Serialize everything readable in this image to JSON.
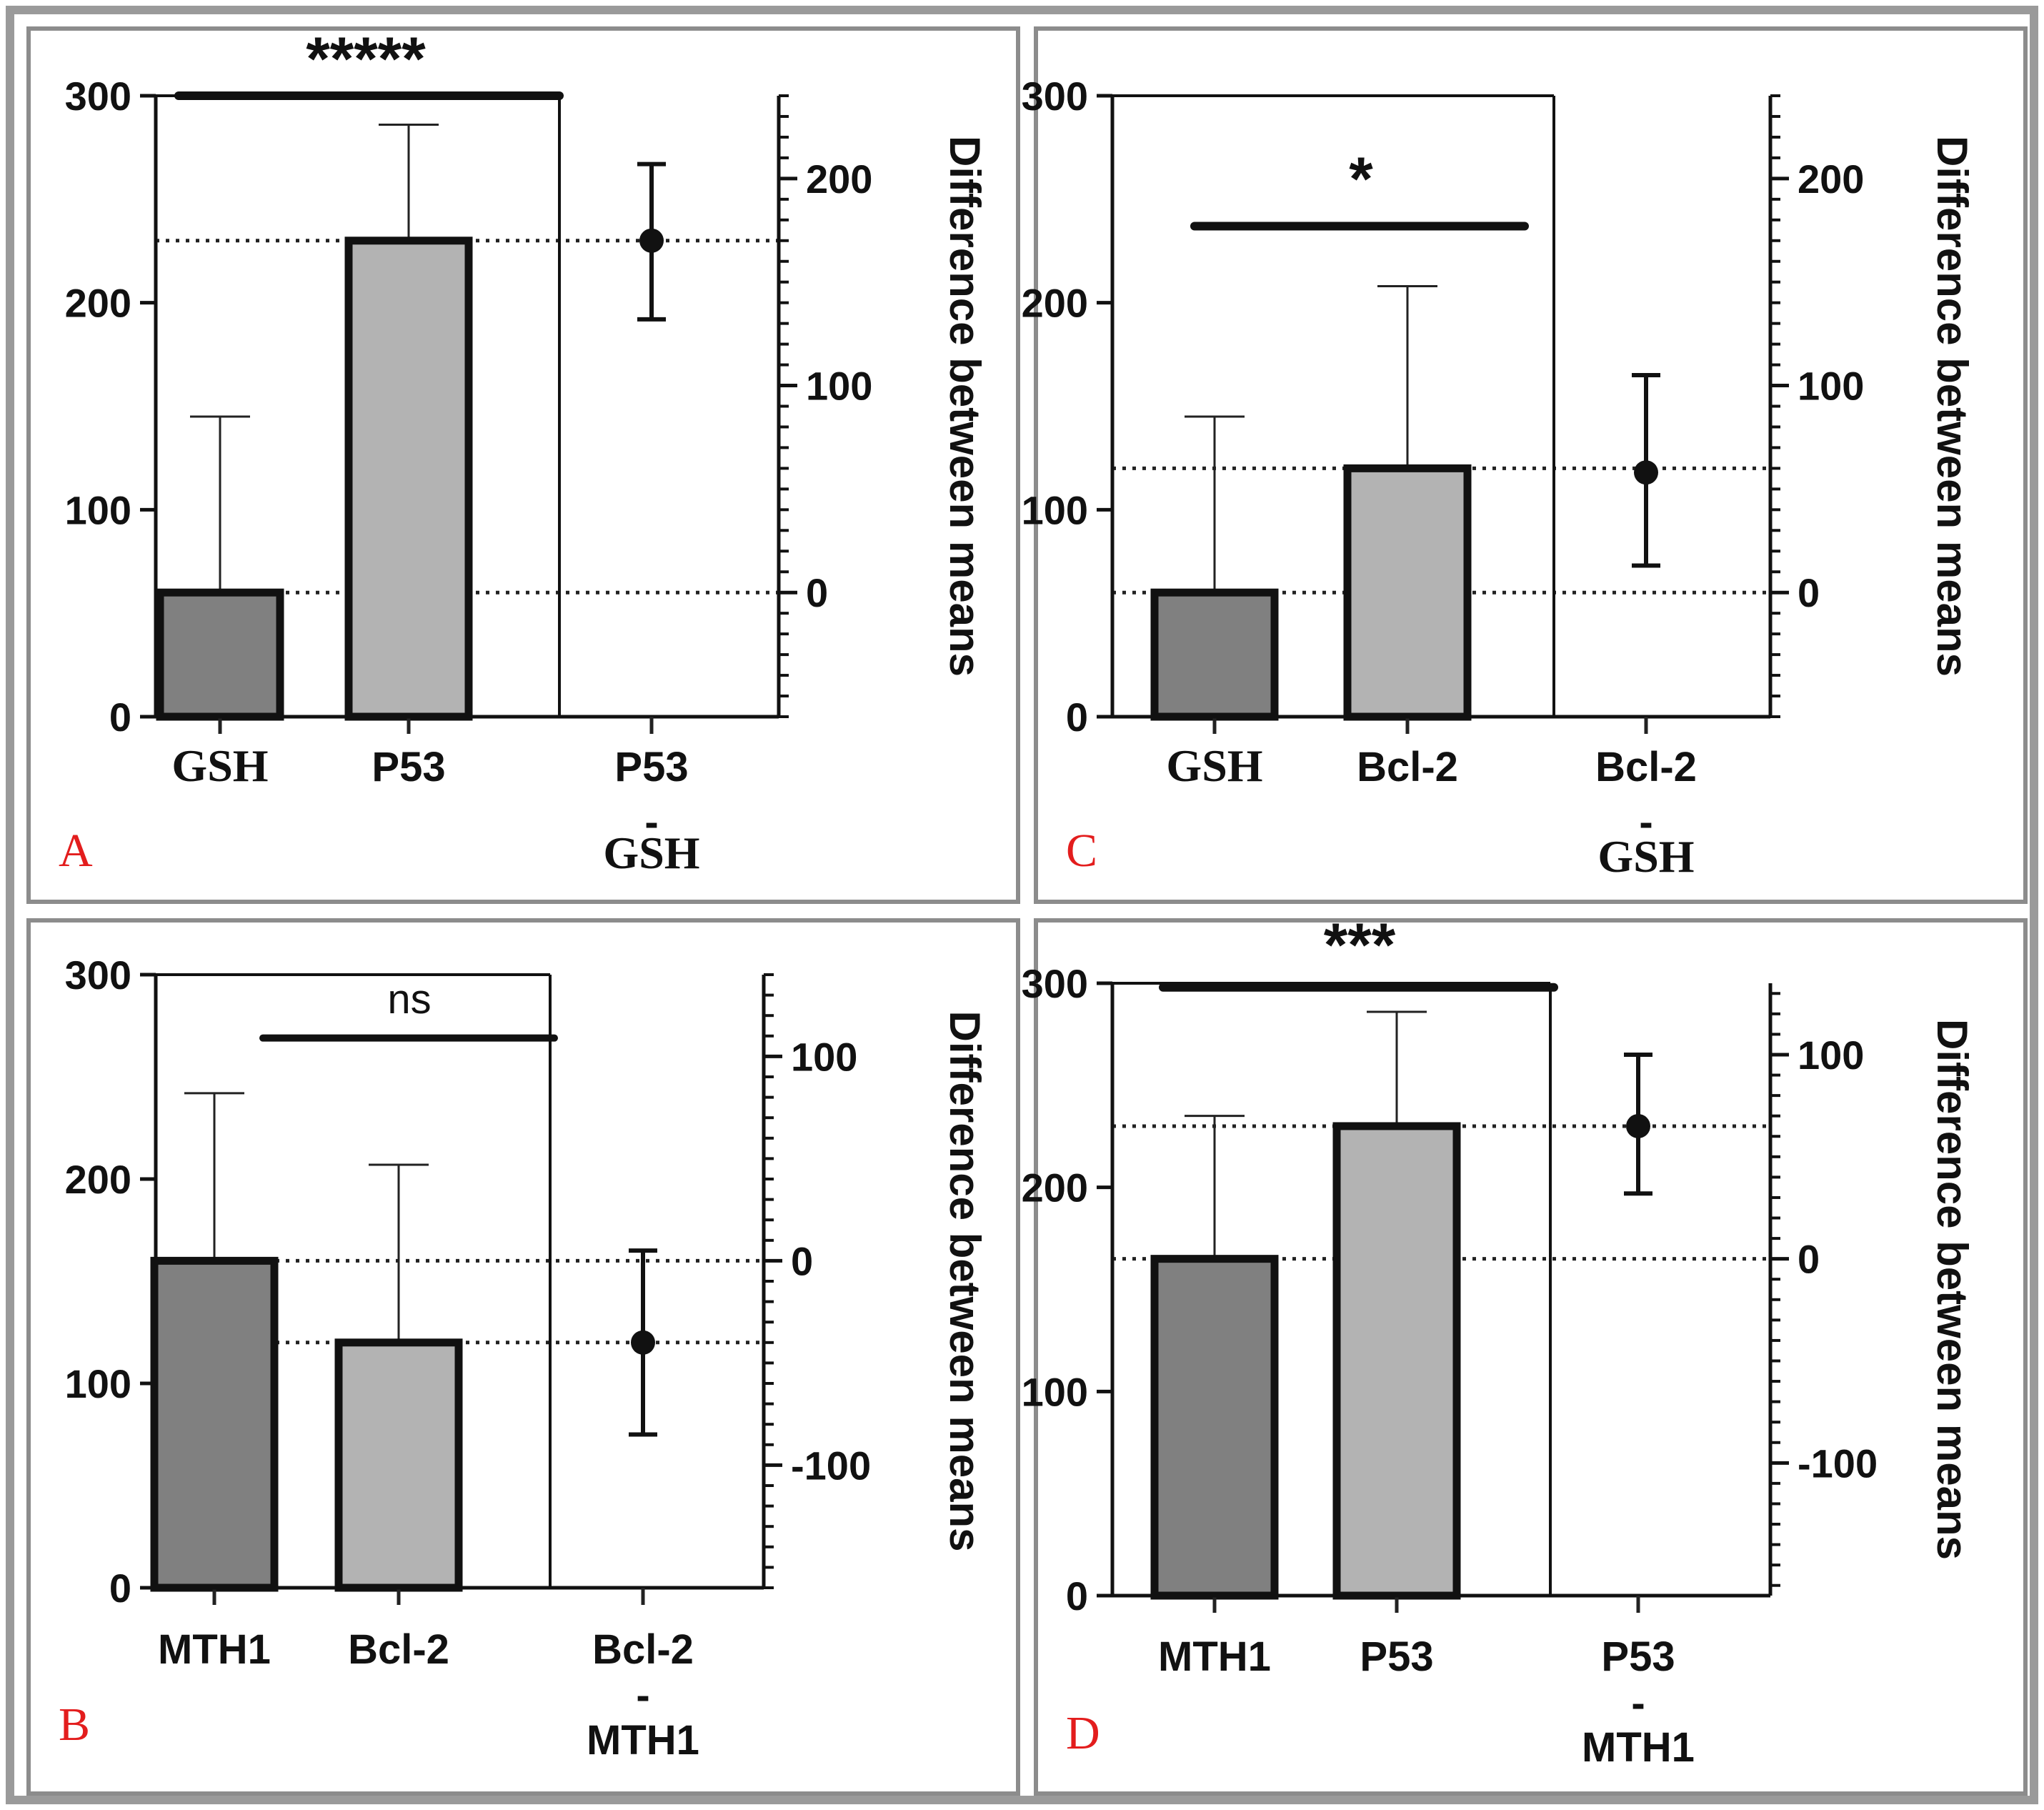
{
  "figure": {
    "y_axis_label": "Difference between means"
  },
  "chart_data": [
    {
      "panel": "A",
      "type": "bar",
      "categories": [
        "GSH",
        "P53"
      ],
      "values": [
        60,
        230
      ],
      "error_upper": [
        145,
        286
      ],
      "bar_colors": [
        "#808080",
        "#b3b3b3"
      ],
      "ylim": [
        0,
        300
      ],
      "yticks": [
        0,
        100,
        200,
        300
      ],
      "difference": {
        "label_top": "P53",
        "label_mid": "-",
        "label_bottom": "GSH",
        "mean": 170,
        "ci_low": 132,
        "ci_high": 207
      },
      "diff_ylim": [
        -60,
        240
      ],
      "diff_ticks": [
        0,
        100,
        200
      ],
      "significance": "*****",
      "sig_bar_y": 300
    },
    {
      "panel": "C",
      "type": "bar",
      "categories": [
        "GSH",
        "Bcl-2"
      ],
      "values": [
        60,
        120
      ],
      "error_upper": [
        145,
        208
      ],
      "bar_colors": [
        "#808080",
        "#b3b3b3"
      ],
      "ylim": [
        0,
        300
      ],
      "yticks": [
        0,
        100,
        200,
        300
      ],
      "difference": {
        "label_top": "Bcl-2",
        "label_mid": "-",
        "label_bottom": "GSH",
        "mean": 58,
        "ci_low": 13,
        "ci_high": 105
      },
      "diff_ylim": [
        -60,
        240
      ],
      "diff_ticks": [
        0,
        100,
        200
      ],
      "significance": "*",
      "sig_bar_y": 237
    },
    {
      "panel": "B",
      "type": "bar",
      "categories": [
        "MTH1",
        "Bcl-2"
      ],
      "values": [
        160,
        120
      ],
      "error_upper": [
        242,
        207
      ],
      "bar_colors": [
        "#808080",
        "#b3b3b3"
      ],
      "ylim": [
        0,
        300
      ],
      "yticks": [
        0,
        100,
        200,
        300
      ],
      "difference": {
        "label_top": "Bcl-2",
        "label_mid": "-",
        "label_bottom": "MTH1",
        "mean": -40,
        "ci_low": -85,
        "ci_high": 5
      },
      "diff_ylim": [
        -160,
        140
      ],
      "diff_ticks": [
        -100,
        0,
        100
      ],
      "significance": "ns",
      "sig_bar_y": 269
    },
    {
      "panel": "D",
      "type": "bar",
      "categories": [
        "MTH1",
        "P53"
      ],
      "values": [
        165,
        230
      ],
      "error_upper": [
        235,
        286
      ],
      "bar_colors": [
        "#808080",
        "#b3b3b3"
      ],
      "ylim": [
        0,
        300
      ],
      "yticks": [
        0,
        100,
        200,
        300
      ],
      "difference": {
        "label_top": "P53",
        "label_mid": "-",
        "label_bottom": "MTH1",
        "mean": 65,
        "ci_low": 32,
        "ci_high": 100
      },
      "diff_ylim": [
        -165,
        135
      ],
      "diff_ticks": [
        -100,
        0,
        100
      ],
      "significance": "***",
      "sig_bar_y": 298
    }
  ]
}
